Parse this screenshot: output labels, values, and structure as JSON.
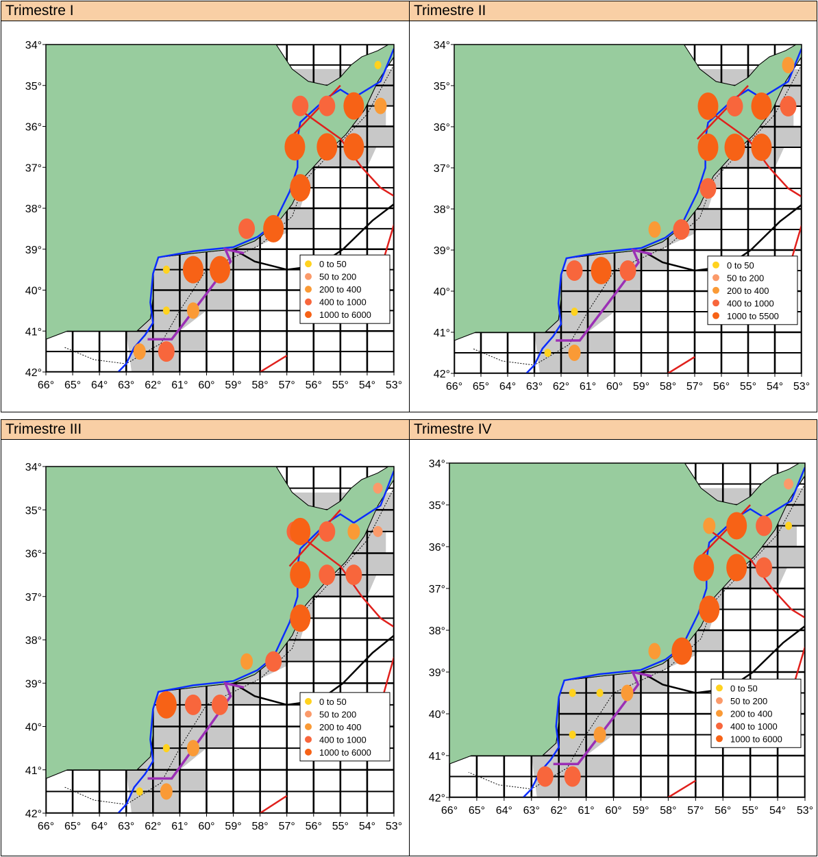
{
  "panels": [
    {
      "title": "Trimestre I",
      "legend": [
        "0  to  50",
        "50  to  200",
        "200  to  400",
        "400  to  1000",
        "1000  to  6000"
      ]
    },
    {
      "title": "Trimestre II",
      "legend": [
        "0  to  50",
        "50  to  200",
        "200  to  400",
        "400  to  1000",
        "1000  to  5500"
      ]
    },
    {
      "title": "Trimestre III",
      "legend": [
        "0  to  50",
        "50  to  200",
        "200  to  400",
        "400  to  1000",
        "1000  to  6000"
      ]
    },
    {
      "title": "Trimestre IV",
      "legend": [
        "0  to  50",
        "50  to  200",
        "200  to  400",
        "400  to  1000",
        "1000  to  6000"
      ]
    }
  ],
  "axes": {
    "lat_labels": [
      "34°",
      "35°",
      "36°",
      "37°",
      "38°",
      "39°",
      "40°",
      "41°",
      "42°"
    ],
    "lon_labels": [
      "66°",
      "65°",
      "64°",
      "63°",
      "62°",
      "61°",
      "60°",
      "59°",
      "58°",
      "57°",
      "56°",
      "55°",
      "54°",
      "53°"
    ]
  },
  "colors": {
    "land": "#98cc9e",
    "shelf": "#c8c8c8",
    "class_colors": [
      "#ffd21f",
      "#fb9a6a",
      "#fa9a36",
      "#f8663c",
      "#f76216"
    ],
    "header_bg": "#f9cfa5"
  },
  "circles": [
    [
      [
        53.6,
        34.5,
        0
      ],
      [
        56.5,
        35.5,
        3
      ],
      [
        55.5,
        35.5,
        3
      ],
      [
        54.5,
        35.5,
        4
      ],
      [
        53.5,
        35.5,
        2
      ],
      [
        56.7,
        36.5,
        4
      ],
      [
        55.5,
        36.5,
        4
      ],
      [
        54.5,
        36.5,
        4
      ],
      [
        56.5,
        37.5,
        4
      ],
      [
        58.5,
        38.5,
        3
      ],
      [
        57.5,
        38.5,
        4
      ],
      [
        61.5,
        39.5,
        0
      ],
      [
        60.5,
        39.5,
        4
      ],
      [
        59.5,
        39.5,
        4
      ],
      [
        61.5,
        40.5,
        0
      ],
      [
        60.5,
        40.5,
        2
      ],
      [
        62.5,
        41.5,
        2
      ],
      [
        61.5,
        41.5,
        3
      ]
    ],
    [
      [
        53.5,
        34.5,
        2
      ],
      [
        56.5,
        35.5,
        4
      ],
      [
        55.5,
        35.5,
        3
      ],
      [
        54.5,
        35.5,
        4
      ],
      [
        53.5,
        35.5,
        3
      ],
      [
        56.5,
        36.5,
        4
      ],
      [
        55.5,
        36.5,
        4
      ],
      [
        54.5,
        36.5,
        4
      ],
      [
        56.5,
        37.5,
        3
      ],
      [
        58.5,
        38.5,
        2
      ],
      [
        57.5,
        38.5,
        3
      ],
      [
        61.5,
        39.5,
        3
      ],
      [
        60.5,
        39.5,
        4
      ],
      [
        59.5,
        39.5,
        3
      ],
      [
        61.5,
        40.5,
        0
      ],
      [
        62.5,
        41.5,
        0
      ],
      [
        61.5,
        41.5,
        2
      ]
    ],
    [
      [
        53.6,
        34.5,
        1
      ],
      [
        56.7,
        35.5,
        3
      ],
      [
        56.5,
        35.5,
        4
      ],
      [
        55.5,
        35.5,
        3
      ],
      [
        54.5,
        35.5,
        2
      ],
      [
        53.6,
        35.5,
        1
      ],
      [
        56.5,
        36.5,
        4
      ],
      [
        55.5,
        36.5,
        3
      ],
      [
        54.5,
        36.5,
        3
      ],
      [
        56.5,
        37.5,
        4
      ],
      [
        58.5,
        38.5,
        2
      ],
      [
        57.5,
        38.5,
        3
      ],
      [
        61.5,
        39.5,
        4
      ],
      [
        60.5,
        39.5,
        3
      ],
      [
        59.5,
        39.5,
        3
      ],
      [
        61.5,
        40.5,
        0
      ],
      [
        60.5,
        40.5,
        2
      ],
      [
        62.5,
        41.5,
        0
      ],
      [
        61.5,
        41.5,
        2
      ]
    ],
    [
      [
        53.6,
        34.5,
        1
      ],
      [
        56.5,
        35.5,
        2
      ],
      [
        55.5,
        35.5,
        4
      ],
      [
        54.5,
        35.5,
        3
      ],
      [
        53.6,
        35.5,
        0
      ],
      [
        56.7,
        36.5,
        4
      ],
      [
        55.5,
        36.5,
        4
      ],
      [
        54.5,
        36.5,
        3
      ],
      [
        56.5,
        37.5,
        4
      ],
      [
        58.5,
        38.5,
        2
      ],
      [
        57.5,
        38.5,
        4
      ],
      [
        61.5,
        39.5,
        0
      ],
      [
        60.5,
        39.5,
        0
      ],
      [
        59.5,
        39.5,
        2
      ],
      [
        61.5,
        40.5,
        0
      ],
      [
        60.5,
        40.5,
        2
      ],
      [
        62.5,
        41.5,
        3
      ],
      [
        61.5,
        41.5,
        3
      ]
    ]
  ]
}
